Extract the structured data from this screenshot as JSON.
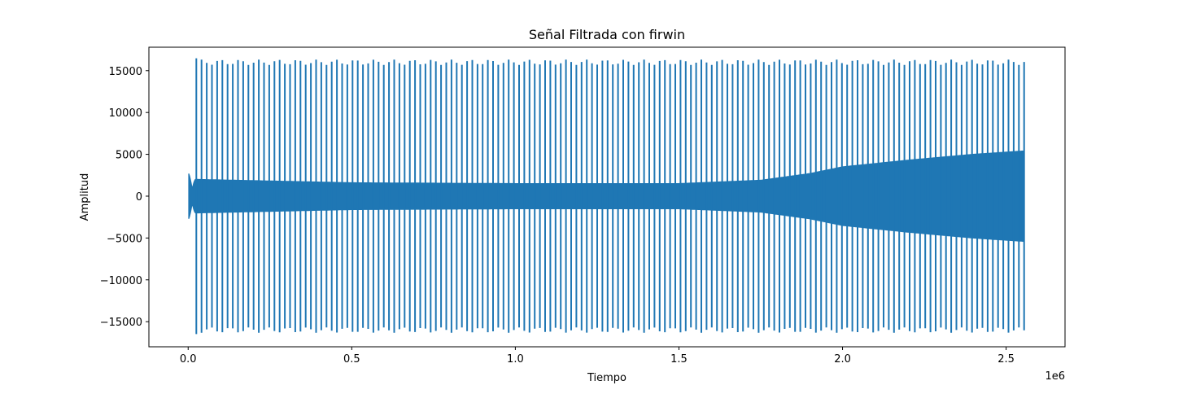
{
  "chart_data": {
    "type": "line",
    "title": "Señal Filtrada con firwin",
    "xlabel": "Tiempo",
    "ylabel": "Amplitud",
    "x_offset_label": "1e6",
    "xlim": [
      -0.12,
      2.68
    ],
    "ylim": [
      -18000,
      17800
    ],
    "x_ticks": [
      0.0,
      0.5,
      1.0,
      1.5,
      2.0,
      2.5
    ],
    "x_tick_labels": [
      "0.0",
      "0.5",
      "1.0",
      "1.5",
      "2.0",
      "2.5"
    ],
    "y_ticks": [
      -15000,
      -10000,
      -5000,
      0,
      5000,
      10000,
      15000
    ],
    "y_tick_labels": [
      "−15000",
      "−10000",
      "−5000",
      "0",
      "5000",
      "10000",
      "15000"
    ],
    "grid": false,
    "series": [
      {
        "color": "#1f77b4",
        "x_range": [
          0.0,
          2.555
        ],
        "onset_x": 0.025,
        "spike_amplitude": 16000,
        "spike_count": 160,
        "noise_envelope": {
          "x": [
            0.0,
            0.025,
            0.5,
            1.0,
            1.5,
            1.75,
            1.9,
            2.0,
            2.2,
            2.4,
            2.555
          ],
          "amplitude": [
            2800,
            2000,
            1600,
            1500,
            1500,
            1900,
            2700,
            3500,
            4300,
            5000,
            5400
          ]
        }
      }
    ]
  }
}
